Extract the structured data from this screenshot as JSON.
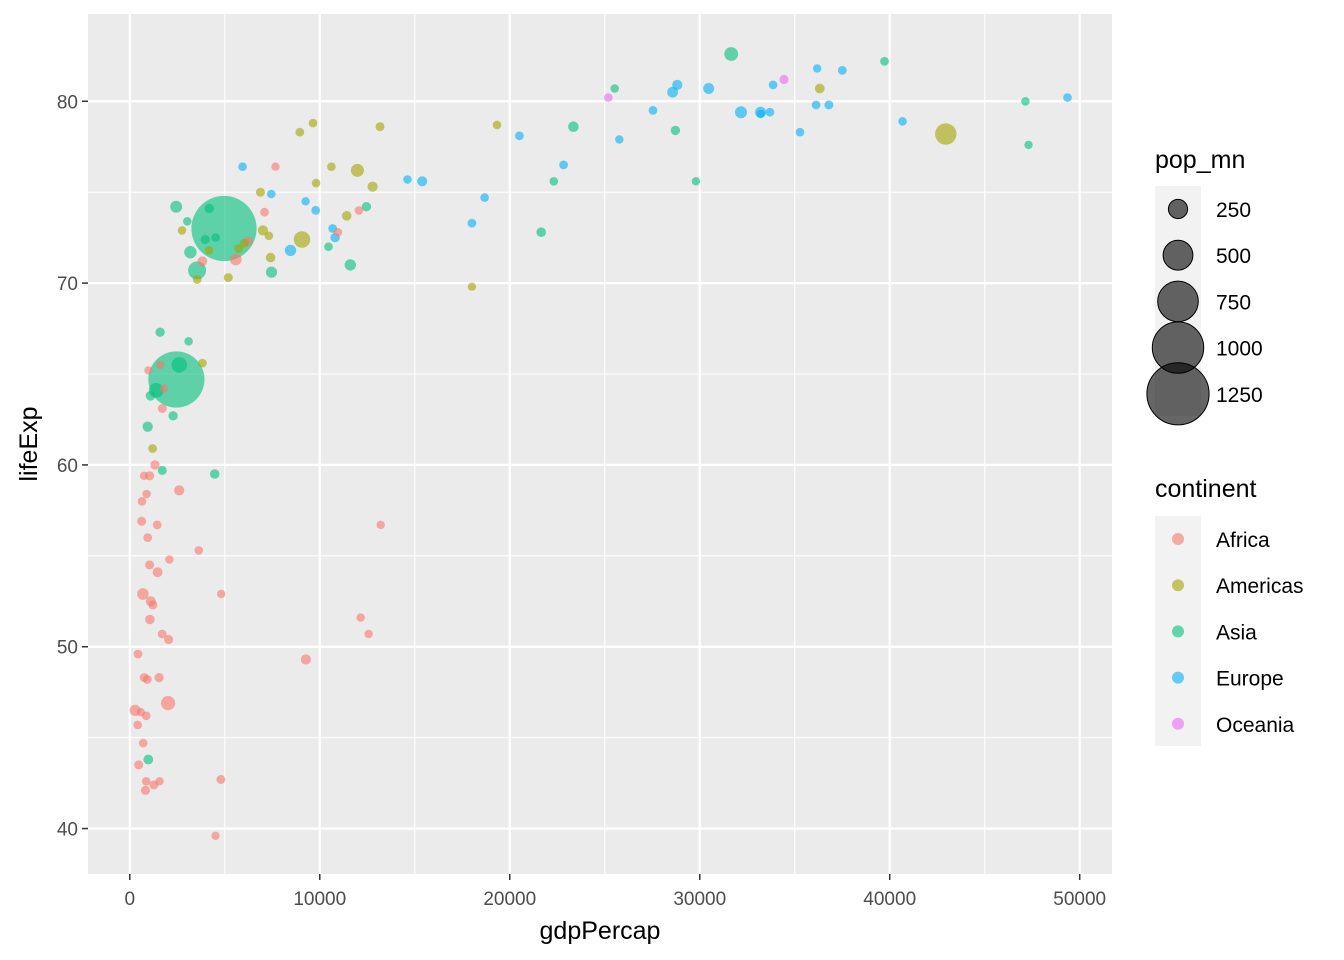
{
  "chart_data": {
    "type": "scatter",
    "title": "",
    "xlabel": "gdpPercap",
    "ylabel": "lifeExp",
    "xlim": [
      -2200,
      51700
    ],
    "ylim": [
      37.5,
      84.8
    ],
    "x_ticks": [
      0,
      10000,
      20000,
      30000,
      40000,
      50000
    ],
    "x_tick_labels": [
      "0",
      "10000",
      "20000",
      "30000",
      "40000",
      "50000"
    ],
    "y_ticks": [
      40,
      50,
      60,
      70,
      80
    ],
    "y_tick_labels": [
      "40",
      "50",
      "60",
      "70",
      "80"
    ],
    "grid": true,
    "point_opacity": 0.6,
    "size_legend": {
      "title": "pop_mn",
      "entries": [
        {
          "label": "250",
          "value": 250
        },
        {
          "label": "500",
          "value": 500
        },
        {
          "label": "750",
          "value": 750
        },
        {
          "label": "1000",
          "value": 1000
        },
        {
          "label": "1250",
          "value": 1250
        }
      ]
    },
    "color_legend": {
      "title": "continent",
      "placement": "right",
      "entries": [
        {
          "label": "Africa",
          "color": "#F8766D"
        },
        {
          "label": "Americas",
          "color": "#A3A500"
        },
        {
          "label": "Asia",
          "color": "#00BF7D"
        },
        {
          "label": "Europe",
          "color": "#00B0F6"
        },
        {
          "label": "Oceania",
          "color": "#E76BF3"
        }
      ]
    },
    "series": [
      {
        "name": "Africa",
        "points": [
          [
            6223,
            72.3,
            33
          ],
          [
            4797,
            42.7,
            12
          ],
          [
            1441,
            56.7,
            8
          ],
          [
            12570,
            50.7,
            2
          ],
          [
            1217,
            52.3,
            14
          ],
          [
            430,
            49.6,
            8
          ],
          [
            2042,
            50.4,
            18
          ],
          [
            706,
            44.7,
            4
          ],
          [
            1704,
            50.7,
            10
          ],
          [
            986,
            65.2,
            1
          ],
          [
            278,
            46.5,
            65
          ],
          [
            3633,
            55.3,
            4
          ],
          [
            1545,
            48.3,
            18
          ],
          [
            2082,
            54.8,
            1
          ],
          [
            5581,
            71.3,
            80
          ],
          [
            12154,
            51.6,
            1
          ],
          [
            641,
            58.0,
            5
          ],
          [
            690,
            52.9,
            76
          ],
          [
            13206,
            56.7,
            1
          ],
          [
            753,
            59.4,
            1
          ],
          [
            1327,
            60.0,
            23
          ],
          [
            943,
            56.0,
            10
          ],
          [
            580,
            46.4,
            1
          ],
          [
            1463,
            54.1,
            35
          ],
          [
            1569,
            42.6,
            2
          ],
          [
            415,
            45.7,
            3
          ],
          [
            12057,
            74.0,
            6
          ],
          [
            1045,
            59.4,
            19
          ],
          [
            759,
            48.3,
            13
          ],
          [
            1042,
            54.5,
            12
          ],
          [
            1803,
            64.2,
            3
          ],
          [
            10957,
            72.8,
            1
          ],
          [
            3820,
            71.2,
            33
          ],
          [
            824,
            42.1,
            20
          ],
          [
            4811,
            52.9,
            2
          ],
          [
            620,
            56.9,
            12
          ],
          [
            2014,
            46.9,
            135
          ],
          [
            7670,
            76.4,
            1
          ],
          [
            863,
            46.2,
            9
          ],
          [
            1598,
            65.5,
            1
          ],
          [
            1712,
            63.1,
            12
          ],
          [
            862,
            42.6,
            6
          ],
          [
            926,
            48.2,
            9
          ],
          [
            9270,
            49.3,
            44
          ],
          [
            2602,
            58.6,
            42
          ],
          [
            4513,
            39.6,
            1
          ],
          [
            1107,
            52.5,
            38
          ],
          [
            883,
            58.4,
            6
          ],
          [
            7093,
            73.9,
            10
          ],
          [
            1056,
            51.5,
            30
          ],
          [
            1271,
            42.4,
            12
          ],
          [
            470,
            43.5,
            12
          ]
        ]
      },
      {
        "name": "Americas",
        "points": [
          [
            12779,
            75.3,
            40
          ],
          [
            3822,
            65.6,
            9
          ],
          [
            9066,
            72.4,
            190
          ],
          [
            36319,
            80.7,
            33
          ],
          [
            13172,
            78.6,
            16
          ],
          [
            7007,
            72.9,
            44
          ],
          [
            9645,
            78.8,
            4
          ],
          [
            8948,
            78.3,
            11
          ],
          [
            6025,
            72.2,
            9
          ],
          [
            6873,
            75.0,
            14
          ],
          [
            5728,
            71.9,
            7
          ],
          [
            5186,
            70.3,
            13
          ],
          [
            1202,
            60.9,
            9
          ],
          [
            3548,
            70.2,
            7
          ],
          [
            7321,
            72.6,
            3
          ],
          [
            11978,
            76.2,
            108
          ],
          [
            2749,
            72.9,
            6
          ],
          [
            9809,
            75.5,
            3
          ],
          [
            4173,
            71.8,
            6
          ],
          [
            7409,
            71.4,
            28
          ],
          [
            19329,
            78.7,
            4
          ],
          [
            18009,
            69.8,
            1
          ],
          [
            42952,
            78.2,
            301
          ],
          [
            10611,
            76.4,
            3
          ],
          [
            11416,
            73.7,
            26
          ]
        ]
      },
      {
        "name": "Asia",
        "points": [
          [
            975,
            43.8,
            32
          ],
          [
            29796,
            75.6,
            1
          ],
          [
            1391,
            64.1,
            150
          ],
          [
            1713,
            59.7,
            14
          ],
          [
            4959,
            73.0,
            1319
          ],
          [
            39725,
            82.2,
            7
          ],
          [
            2452,
            64.7,
            1110
          ],
          [
            3541,
            70.7,
            224
          ],
          [
            11606,
            71.0,
            69
          ],
          [
            4471,
            59.5,
            28
          ],
          [
            25523,
            80.7,
            6
          ],
          [
            31656,
            82.6,
            127
          ],
          [
            4519,
            72.5,
            6
          ],
          [
            1593,
            67.3,
            23
          ],
          [
            23348,
            78.6,
            49
          ],
          [
            47307,
            77.6,
            2
          ],
          [
            10461,
            72.0,
            4
          ],
          [
            12452,
            74.2,
            24
          ],
          [
            3096,
            66.8,
            3
          ],
          [
            944,
            62.1,
            47
          ],
          [
            1091,
            63.8,
            28
          ],
          [
            22316,
            75.6,
            3
          ],
          [
            2606,
            65.5,
            169
          ],
          [
            3190,
            71.7,
            91
          ],
          [
            21655,
            72.8,
            27
          ],
          [
            47143,
            80.0,
            5
          ],
          [
            3970,
            72.4,
            20
          ],
          [
            4185,
            74.1,
            23
          ],
          [
            28718,
            78.4,
            23
          ],
          [
            7458,
            70.6,
            65
          ],
          [
            2442,
            74.2,
            85
          ],
          [
            3026,
            73.4,
            4
          ],
          [
            2281,
            62.7,
            22
          ]
        ]
      },
      {
        "name": "Europe",
        "points": [
          [
            5937,
            76.4,
            4
          ],
          [
            36126,
            79.8,
            8
          ],
          [
            33693,
            79.4,
            10
          ],
          [
            7446,
            74.9,
            5
          ],
          [
            10681,
            73.0,
            7
          ],
          [
            14619,
            75.7,
            4
          ],
          [
            22833,
            76.5,
            10
          ],
          [
            35278,
            78.3,
            5
          ],
          [
            33207,
            79.3,
            5
          ],
          [
            30470,
            80.7,
            61
          ],
          [
            32170,
            79.4,
            82
          ],
          [
            27538,
            79.5,
            11
          ],
          [
            18009,
            73.3,
            10
          ],
          [
            36181,
            81.8,
            1
          ],
          [
            40676,
            78.9,
            4
          ],
          [
            28570,
            80.5,
            58
          ],
          [
            9254,
            74.5,
            1
          ],
          [
            36798,
            79.8,
            16
          ],
          [
            49357,
            80.2,
            5
          ],
          [
            15390,
            75.6,
            38
          ],
          [
            20510,
            78.1,
            11
          ],
          [
            10808,
            72.5,
            22
          ],
          [
            9787,
            74.0,
            10
          ],
          [
            18678,
            74.7,
            5
          ],
          [
            25768,
            77.9,
            2
          ],
          [
            28821,
            80.9,
            40
          ],
          [
            33860,
            80.9,
            9
          ],
          [
            37506,
            81.7,
            8
          ],
          [
            8458,
            71.8,
            71
          ],
          [
            33203,
            79.4,
            61
          ]
        ]
      },
      {
        "name": "Oceania",
        "points": [
          [
            34435,
            81.2,
            20
          ],
          [
            25185,
            80.2,
            4
          ]
        ]
      }
    ]
  }
}
